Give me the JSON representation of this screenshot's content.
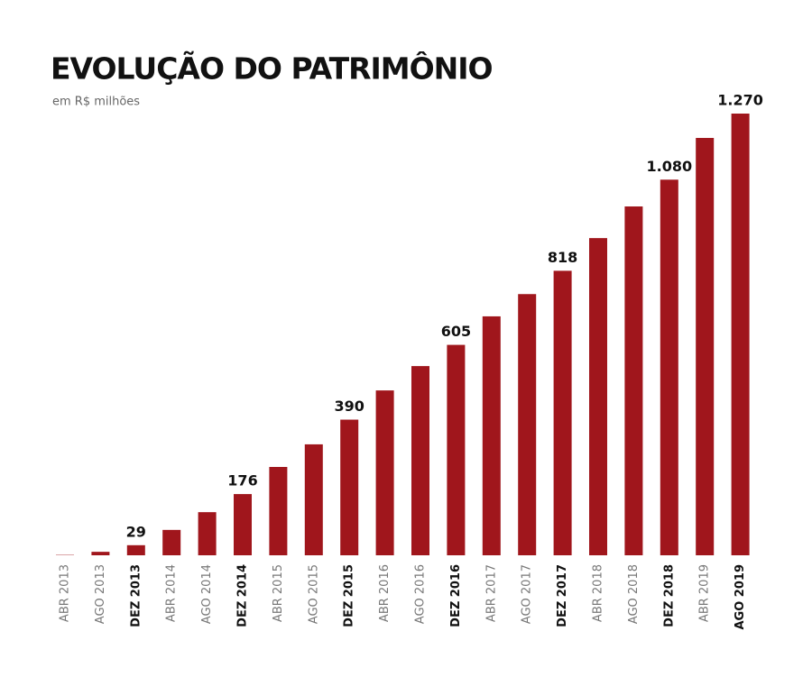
{
  "chart_data": {
    "type": "bar",
    "title": "EVOLUÇÃO DO PATRIMÔNIO",
    "subtitle": "em R$ milhões",
    "categories": [
      "ABR 2013",
      "AGO 2013",
      "DEZ 2013",
      "ABR 2014",
      "AGO 2014",
      "DEZ 2014",
      "ABR 2015",
      "AGO 2015",
      "DEZ 2015",
      "ABR 2016",
      "AGO 2016",
      "DEZ 2016",
      "ABR 2017",
      "AGO 2017",
      "DEZ 2017",
      "ABR 2018",
      "AGO 2018",
      "DEZ 2018",
      "ABR 2019",
      "AGO 2019"
    ],
    "values": [
      1,
      10,
      29,
      73,
      124,
      176,
      254,
      319,
      390,
      474,
      544,
      605,
      687,
      751,
      818,
      912,
      1003,
      1080,
      1200,
      1270
    ],
    "value_labels": [
      null,
      null,
      "29",
      null,
      null,
      "176",
      null,
      null,
      "390",
      null,
      null,
      "605",
      null,
      null,
      "818",
      null,
      null,
      "1.080",
      null,
      "1.270"
    ],
    "color": "#a0161c"
  }
}
